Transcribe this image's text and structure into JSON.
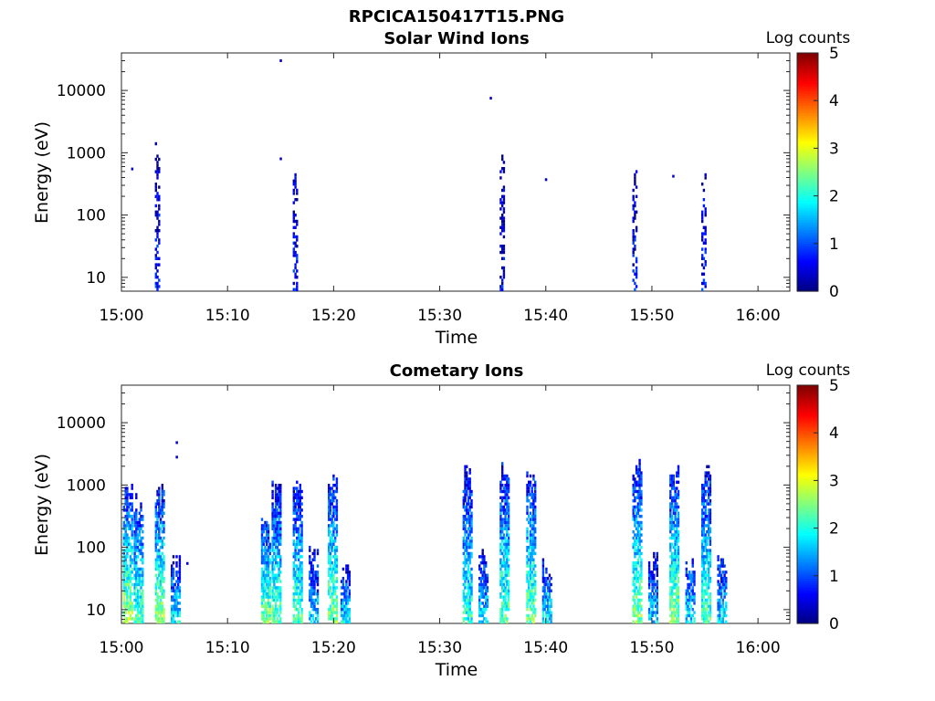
{
  "figure_title": "RPCICA150417T15.PNG",
  "chart_data": [
    {
      "type": "heatmap",
      "title": "Solar Wind Ions",
      "xlabel": "Time",
      "ylabel": "Energy (eV)",
      "yscale": "log",
      "ylim": [
        6,
        40000
      ],
      "xlim": [
        "15:00",
        "16:03"
      ],
      "x_ticks": [
        "15:00",
        "15:10",
        "15:20",
        "15:30",
        "15:40",
        "15:50",
        "16:00"
      ],
      "y_ticks": [
        "10",
        "100",
        "1000",
        "10000"
      ],
      "colorbar": {
        "label": "Log counts",
        "range": [
          0,
          5
        ],
        "ticks": [
          "0",
          "1",
          "2",
          "3",
          "4",
          "5"
        ],
        "colormap": "jet"
      },
      "grid": false,
      "bursts": [
        {
          "time": "15:03.5",
          "emin": 6,
          "emax": 2000,
          "level": 0.6
        },
        {
          "time": "15:16.5",
          "emin": 6,
          "emax": 900,
          "level": 0.6
        },
        {
          "time": "15:36",
          "emin": 6,
          "emax": 1500,
          "level": 0.5
        },
        {
          "time": "15:48.5",
          "emin": 6,
          "emax": 600,
          "level": 0.6
        },
        {
          "time": "15:55",
          "emin": 6,
          "emax": 750,
          "level": 0.6
        }
      ],
      "isolated_points": [
        {
          "time": "15:01",
          "energy": 550,
          "level": 0.4
        },
        {
          "time": "15:15",
          "energy": 30000,
          "level": 0.4
        },
        {
          "time": "15:15",
          "energy": 800,
          "level": 0.4
        },
        {
          "time": "15:34.8",
          "energy": 7500,
          "level": 0.4
        },
        {
          "time": "15:40",
          "energy": 370,
          "level": 0.4
        },
        {
          "time": "15:52",
          "energy": 420,
          "level": 0.4
        }
      ]
    },
    {
      "type": "heatmap",
      "title": "Cometary Ions",
      "xlabel": "Time",
      "ylabel": "Energy (eV)",
      "yscale": "log",
      "ylim": [
        6,
        40000
      ],
      "xlim": [
        "15:00",
        "16:03"
      ],
      "x_ticks": [
        "15:00",
        "15:10",
        "15:20",
        "15:30",
        "15:40",
        "15:50",
        "16:00"
      ],
      "y_ticks": [
        "10",
        "100",
        "1000",
        "10000"
      ],
      "colorbar": {
        "label": "Log counts",
        "range": [
          0,
          5
        ],
        "ticks": [
          "0",
          "1",
          "2",
          "3",
          "4",
          "5"
        ],
        "colormap": "jet"
      },
      "grid": false,
      "bursts": [
        {
          "time": "15:00.5",
          "emin": 6,
          "emax": 1200,
          "level": 2.4
        },
        {
          "time": "15:01.5",
          "emin": 6,
          "emax": 900,
          "level": 2.0
        },
        {
          "time": "15:03.5",
          "emin": 6,
          "emax": 1200,
          "level": 2.3
        },
        {
          "time": "15:05",
          "emin": 6,
          "emax": 80,
          "level": 1.7
        },
        {
          "time": "15:13.5",
          "emin": 6,
          "emax": 400,
          "level": 2.2
        },
        {
          "time": "15:14.5",
          "emin": 6,
          "emax": 1200,
          "level": 2.1
        },
        {
          "time": "15:16.5",
          "emin": 6,
          "emax": 1300,
          "level": 2.0
        },
        {
          "time": "15:18",
          "emin": 6,
          "emax": 120,
          "level": 1.5
        },
        {
          "time": "15:19.8",
          "emin": 6,
          "emax": 1900,
          "level": 2.2
        },
        {
          "time": "15:21",
          "emin": 6,
          "emax": 60,
          "level": 1.6
        },
        {
          "time": "15:32.5",
          "emin": 6,
          "emax": 2400,
          "level": 1.8
        },
        {
          "time": "15:34",
          "emin": 6,
          "emax": 100,
          "level": 1.6
        },
        {
          "time": "15:36",
          "emin": 6,
          "emax": 2800,
          "level": 2.0
        },
        {
          "time": "15:38.5",
          "emin": 6,
          "emax": 1700,
          "level": 2.2
        },
        {
          "time": "15:40",
          "emin": 6,
          "emax": 80,
          "level": 1.6
        },
        {
          "time": "15:48.5",
          "emin": 6,
          "emax": 2800,
          "level": 2.2
        },
        {
          "time": "15:50",
          "emin": 6,
          "emax": 90,
          "level": 1.5
        },
        {
          "time": "15:52",
          "emin": 6,
          "emax": 2600,
          "level": 2.2
        },
        {
          "time": "15:53.5",
          "emin": 6,
          "emax": 100,
          "level": 1.6
        },
        {
          "time": "15:55",
          "emin": 6,
          "emax": 2500,
          "level": 2.0
        },
        {
          "time": "15:56.5",
          "emin": 6,
          "emax": 90,
          "level": 1.6
        }
      ],
      "isolated_points": [
        {
          "time": "15:05.2",
          "energy": 4800,
          "level": 0.4
        },
        {
          "time": "15:05.2",
          "energy": 2800,
          "level": 0.4
        },
        {
          "time": "15:06.2",
          "energy": 55,
          "level": 0.4
        }
      ]
    }
  ]
}
